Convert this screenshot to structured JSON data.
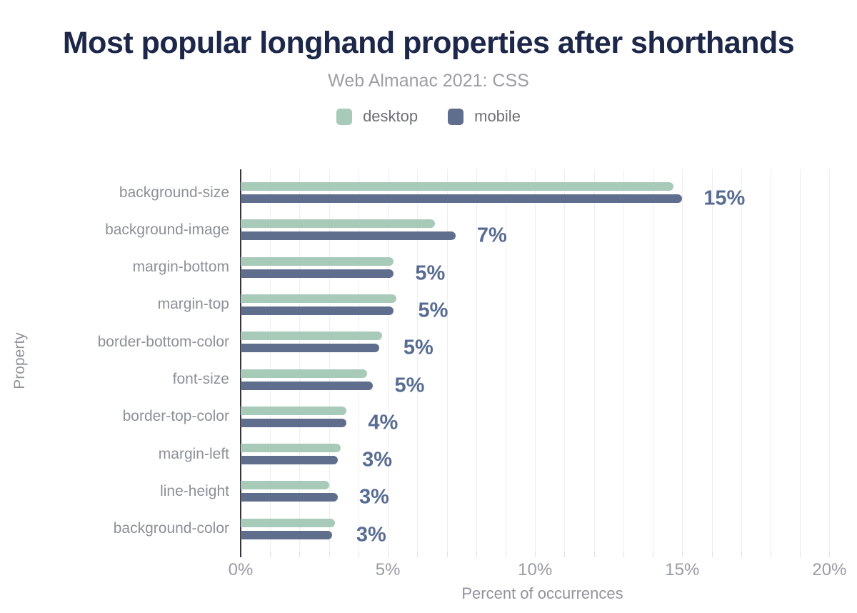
{
  "page": {
    "title": "Most popular longhand properties after shorthands",
    "subtitle": "Web Almanac 2021: CSS"
  },
  "legend": {
    "items": [
      {
        "label": "desktop",
        "color": "#a8cab9"
      },
      {
        "label": "mobile",
        "color": "#5f6e8c"
      }
    ]
  },
  "axes": {
    "x_title": "Percent of occurrences",
    "y_title": "Property",
    "x_ticks": [
      {
        "value": 0,
        "label": "0%"
      },
      {
        "value": 5,
        "label": "5%"
      },
      {
        "value": 10,
        "label": "10%"
      },
      {
        "value": 15,
        "label": "15%"
      },
      {
        "value": 20,
        "label": "20%"
      }
    ],
    "x_max": 20.5
  },
  "chart_data": {
    "type": "bar",
    "orientation": "horizontal",
    "title": "Most popular longhand properties after shorthands",
    "subtitle": "Web Almanac 2021: CSS",
    "xlabel": "Percent of occurrences",
    "ylabel": "Property",
    "xlim": [
      0,
      20.5
    ],
    "grid": "vertical, minor gridline every 1%",
    "legend_position": "top",
    "categories": [
      "background-size",
      "background-image",
      "margin-bottom",
      "margin-top",
      "border-bottom-color",
      "font-size",
      "border-top-color",
      "margin-left",
      "line-height",
      "background-color"
    ],
    "series": [
      {
        "name": "desktop",
        "color": "#a8cab9",
        "values": [
          14.7,
          6.6,
          5.2,
          5.3,
          4.8,
          4.3,
          3.6,
          3.4,
          3.0,
          3.2
        ]
      },
      {
        "name": "mobile",
        "color": "#5f6e8c",
        "values": [
          15.0,
          7.3,
          5.2,
          5.2,
          4.7,
          4.5,
          3.6,
          3.3,
          3.3,
          3.1
        ]
      }
    ],
    "value_labels": [
      "15%",
      "7%",
      "5%",
      "5%",
      "5%",
      "5%",
      "4%",
      "3%",
      "3%",
      "3%"
    ]
  },
  "colors": {
    "title": "#1c2749",
    "subtitle": "#9e9ea2",
    "legend_text": "#6d7076",
    "category_label": "#8c9097",
    "tick_label": "#999ca3",
    "axis_title": "#909399",
    "value_label": "#586c92",
    "desktop_bar": "#a8cab9",
    "mobile_bar": "#5f6e8c",
    "gridline": "#ededf1",
    "axis_line": "#35353b",
    "background": "#ffffff"
  }
}
